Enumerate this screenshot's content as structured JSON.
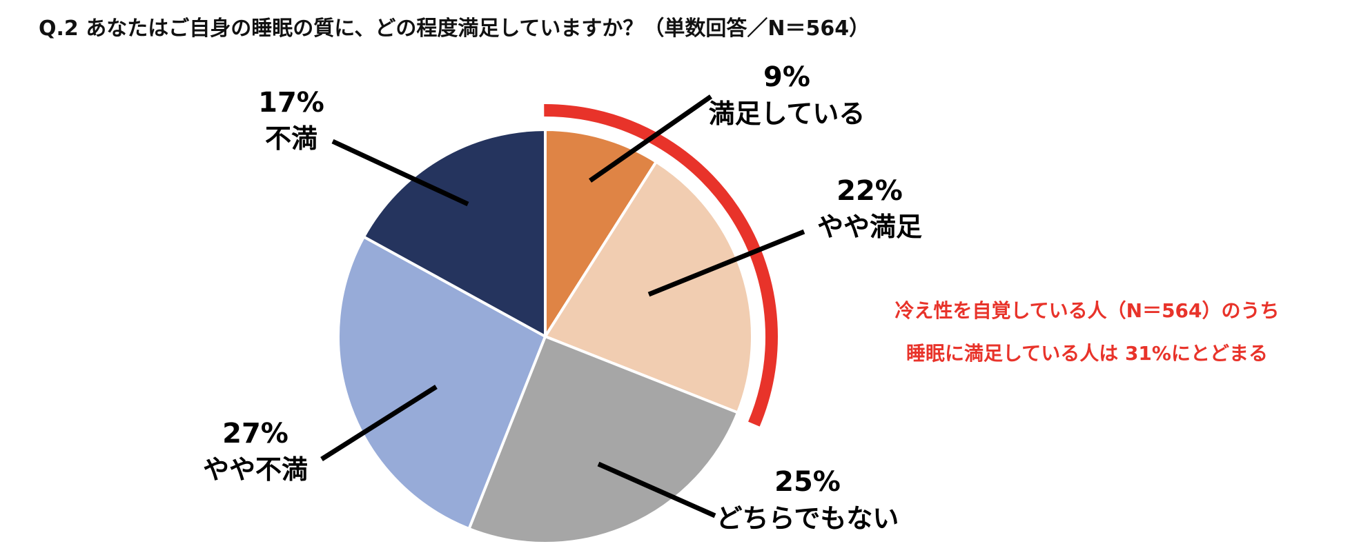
{
  "title": "Q.2  あなたはご自身の睡眠の質に、どの程度満足していますか？（単数回答／N＝564）",
  "chart_data": {
    "type": "pie",
    "title": "Q.2  あなたはご自身の睡眠の質に、どの程度満足していますか？（単数回答／N＝564）",
    "slices": [
      {
        "label": "満足している",
        "value": 9,
        "display": "9%",
        "color": "#df8445"
      },
      {
        "label": "やや満足",
        "value": 22,
        "display": "22%",
        "color": "#f1cdb1"
      },
      {
        "label": "どちらでもない",
        "value": 25,
        "display": "25%",
        "color": "#a6a6a6"
      },
      {
        "label": "やや不満",
        "value": 27,
        "display": "27%",
        "color": "#97abd8"
      },
      {
        "label": "不満",
        "value": 17,
        "display": "17%",
        "color": "#25345e"
      }
    ],
    "highlight": {
      "slices": [
        "満足している",
        "やや満足"
      ],
      "color": "#e8332a"
    },
    "annotation": {
      "lines": [
        "冷え性を自覚している人（N＝564）のうち",
        "睡眠に満足している人は 31%にとどまる"
      ],
      "color": "#e8332a"
    }
  }
}
